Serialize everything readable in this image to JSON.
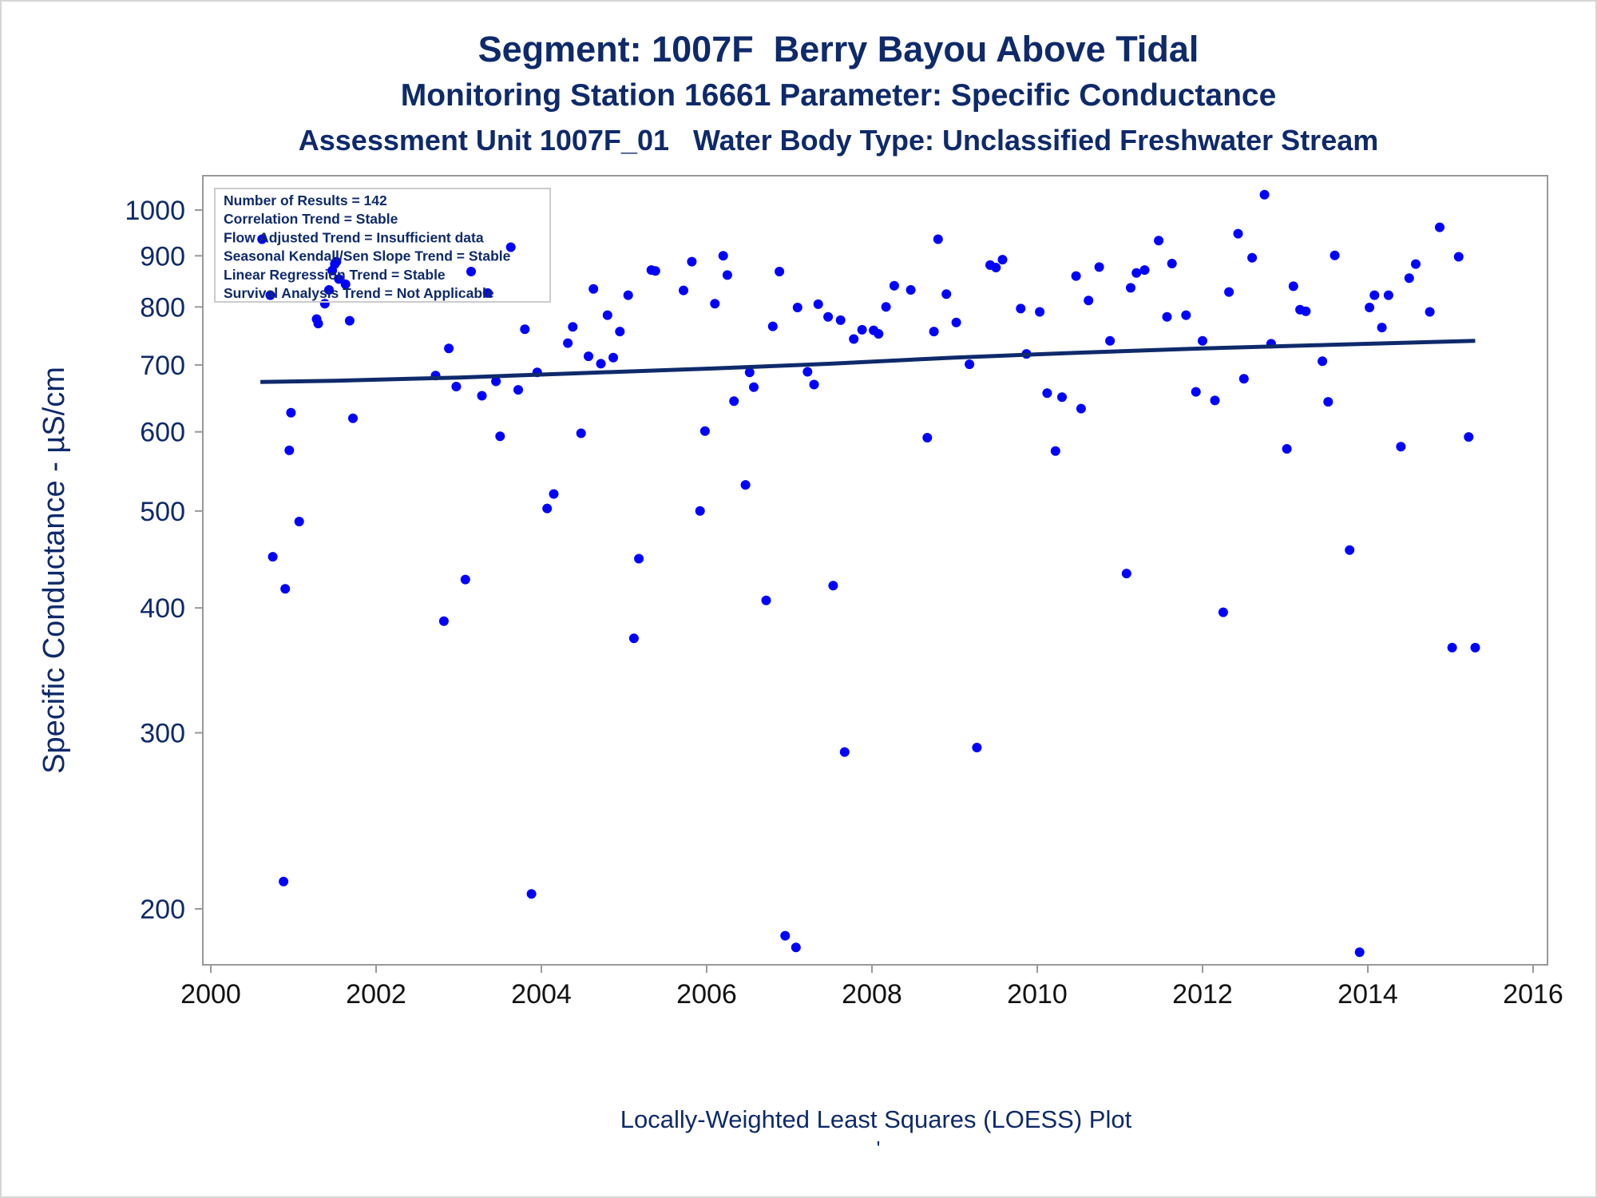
{
  "chart_data": {
    "type": "scatter",
    "title": "Segment: 1007F  Berry Bayou Above Tidal",
    "subtitle": "Monitoring Station 16661 Parameter: Specific Conductance",
    "subtitle2": "Assessment Unit 1007F_01   Water Body Type: Unclassified Freshwater Stream",
    "xlabel": "Locally-Weighted Least Squares (LOESS) Plot",
    "ylabel": "Specific Conductance -  µS/cm",
    "footnote": "'",
    "yscale": "log",
    "xlim": [
      2000,
      2016
    ],
    "ylim": [
      178,
      1070
    ],
    "x_ticks": [
      "2000",
      "2002",
      "2004",
      "2006",
      "2008",
      "2010",
      "2012",
      "2014",
      "2016"
    ],
    "y_ticks": [
      "200",
      "300",
      "400",
      "500",
      "600",
      "700",
      "800",
      "900",
      "1000"
    ],
    "grid": false,
    "stats_box": [
      "Number of Results = 142",
      "Correlation Trend = Stable",
      "Flow Adjusted Trend = Insufficient data",
      "Seasonal Kendall/Sen Slope Trend = Stable",
      "Linear Regression Trend = Stable",
      "Survival Analysis Trend = Not Applicable"
    ],
    "stats_box_position": "top-left",
    "colors": {
      "points": "#0000ff",
      "trend": "#0f2a6b",
      "text": "#0f2a6b",
      "axis": "#999999"
    },
    "trend_line": {
      "x": [
        2000.6,
        2001.5,
        2003,
        2004.5,
        2006,
        2007.5,
        2009,
        2010.5,
        2012,
        2013.5,
        2015.3
      ],
      "y": [
        673,
        675,
        680,
        687,
        694,
        702,
        712,
        720,
        727,
        733,
        740
      ]
    },
    "series": [
      {
        "points": [
          [
            2000.62,
            935
          ],
          [
            2000.72,
            822
          ],
          [
            2000.75,
            450
          ],
          [
            2000.88,
            213
          ],
          [
            2000.9,
            418
          ],
          [
            2000.95,
            575
          ],
          [
            2000.97,
            627
          ],
          [
            2001.07,
            488
          ],
          [
            2001.28,
            778
          ],
          [
            2001.3,
            770
          ],
          [
            2001.38,
            806
          ],
          [
            2001.43,
            832
          ],
          [
            2001.47,
            870
          ],
          [
            2001.5,
            883
          ],
          [
            2001.52,
            888
          ],
          [
            2001.55,
            853
          ],
          [
            2001.63,
            843
          ],
          [
            2001.68,
            775
          ],
          [
            2001.72,
            619
          ],
          [
            2002.72,
            683
          ],
          [
            2002.82,
            388
          ],
          [
            2002.88,
            727
          ],
          [
            2002.97,
            666
          ],
          [
            2003.08,
            427
          ],
          [
            2003.15,
            868
          ],
          [
            2003.28,
            652
          ],
          [
            2003.35,
            826
          ],
          [
            2003.45,
            674
          ],
          [
            2003.5,
            594
          ],
          [
            2003.63,
            918
          ],
          [
            2003.72,
            661
          ],
          [
            2003.8,
            760
          ],
          [
            2003.88,
            207
          ],
          [
            2003.95,
            688
          ],
          [
            2004.07,
            503
          ],
          [
            2004.15,
            520
          ],
          [
            2004.32,
            736
          ],
          [
            2004.38,
            764
          ],
          [
            2004.48,
            598
          ],
          [
            2004.57,
            714
          ],
          [
            2004.63,
            834
          ],
          [
            2004.72,
            702
          ],
          [
            2004.8,
            785
          ],
          [
            2004.87,
            712
          ],
          [
            2004.95,
            756
          ],
          [
            2005.05,
            822
          ],
          [
            2005.12,
            373
          ],
          [
            2005.18,
            448
          ],
          [
            2005.33,
            871
          ],
          [
            2005.38,
            869
          ],
          [
            2005.72,
            831
          ],
          [
            2005.82,
            888
          ],
          [
            2005.92,
            500
          ],
          [
            2005.98,
            601
          ],
          [
            2006.1,
            806
          ],
          [
            2006.2,
            900
          ],
          [
            2006.25,
            861
          ],
          [
            2006.33,
            644
          ],
          [
            2006.47,
            531
          ],
          [
            2006.52,
            688
          ],
          [
            2006.57,
            665
          ],
          [
            2006.72,
            407
          ],
          [
            2006.8,
            765
          ],
          [
            2006.88,
            868
          ],
          [
            2006.95,
            188
          ],
          [
            2007.08,
            183
          ],
          [
            2007.1,
            799
          ],
          [
            2007.22,
            689
          ],
          [
            2007.3,
            669
          ],
          [
            2007.35,
            805
          ],
          [
            2007.47,
            782
          ],
          [
            2007.53,
            421
          ],
          [
            2007.62,
            776
          ],
          [
            2007.67,
            287
          ],
          [
            2007.78,
            743
          ],
          [
            2007.88,
            759
          ],
          [
            2008.02,
            758
          ],
          [
            2008.08,
            752
          ],
          [
            2008.17,
            800
          ],
          [
            2008.27,
            840
          ],
          [
            2008.47,
            832
          ],
          [
            2008.67,
            592
          ],
          [
            2008.75,
            756
          ],
          [
            2008.8,
            935
          ],
          [
            2008.9,
            824
          ],
          [
            2009.02,
            772
          ],
          [
            2009.18,
            701
          ],
          [
            2009.27,
            290
          ],
          [
            2009.43,
            881
          ],
          [
            2009.5,
            876
          ],
          [
            2009.58,
            892
          ],
          [
            2009.8,
            797
          ],
          [
            2009.87,
            718
          ],
          [
            2010.03,
            791
          ],
          [
            2010.12,
            656
          ],
          [
            2010.22,
            574
          ],
          [
            2010.3,
            650
          ],
          [
            2010.47,
            859
          ],
          [
            2010.53,
            633
          ],
          [
            2010.62,
            812
          ],
          [
            2010.75,
            877
          ],
          [
            2010.88,
            740
          ],
          [
            2011.08,
            433
          ],
          [
            2011.13,
            836
          ],
          [
            2011.2,
            865
          ],
          [
            2011.3,
            871
          ],
          [
            2011.47,
            932
          ],
          [
            2011.57,
            782
          ],
          [
            2011.63,
            884
          ],
          [
            2011.8,
            785
          ],
          [
            2011.92,
            658
          ],
          [
            2012.0,
            740
          ],
          [
            2012.15,
            645
          ],
          [
            2012.25,
            396
          ],
          [
            2012.32,
            828
          ],
          [
            2012.43,
            947
          ],
          [
            2012.5,
            678
          ],
          [
            2012.6,
            896
          ],
          [
            2012.75,
            1036
          ],
          [
            2012.83,
            735
          ],
          [
            2013.02,
            577
          ],
          [
            2013.1,
            839
          ],
          [
            2013.18,
            795
          ],
          [
            2013.25,
            792
          ],
          [
            2013.45,
            706
          ],
          [
            2013.52,
            643
          ],
          [
            2013.6,
            901
          ],
          [
            2013.78,
            457
          ],
          [
            2013.9,
            181
          ],
          [
            2014.02,
            799
          ],
          [
            2014.08,
            822
          ],
          [
            2014.17,
            763
          ],
          [
            2014.25,
            822
          ],
          [
            2014.4,
            580
          ],
          [
            2014.5,
            855
          ],
          [
            2014.58,
            883
          ],
          [
            2014.75,
            791
          ],
          [
            2014.87,
            961
          ],
          [
            2015.02,
            365
          ],
          [
            2015.1,
            898
          ],
          [
            2015.22,
            593
          ],
          [
            2015.3,
            365
          ]
        ]
      }
    ]
  }
}
